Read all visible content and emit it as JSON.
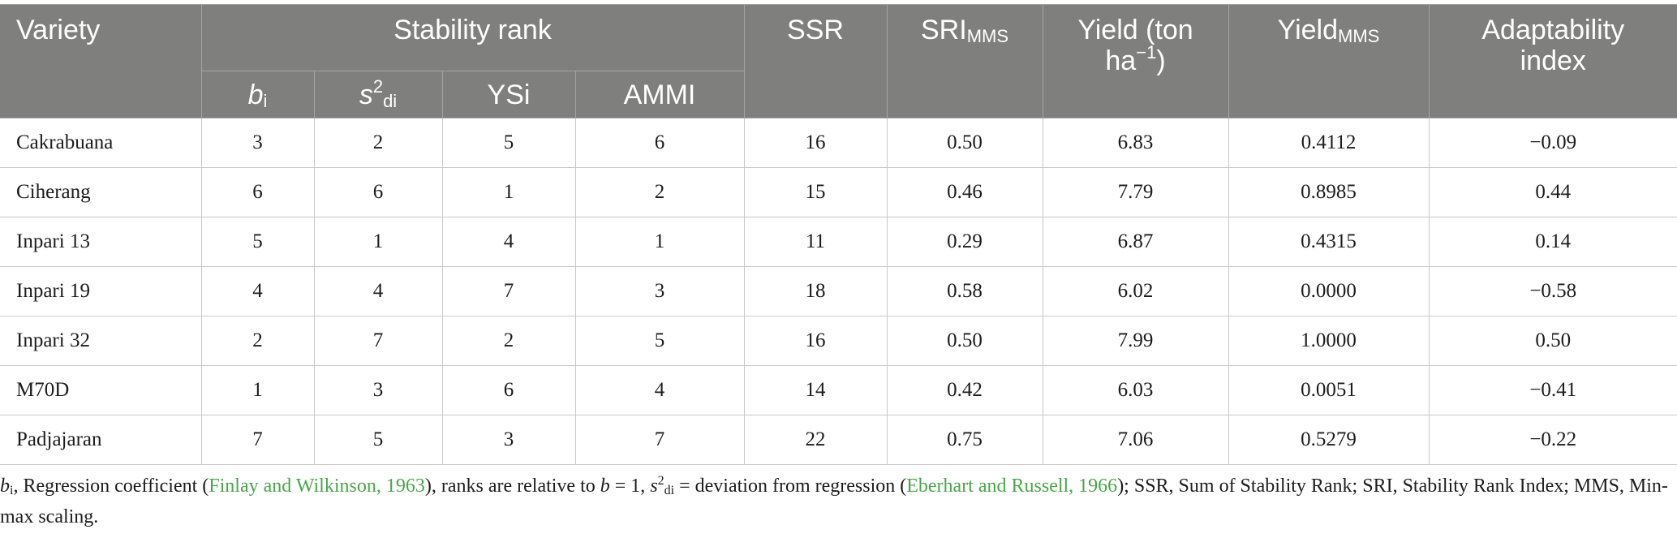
{
  "header": {
    "variety": "Variety",
    "stability_rank": "Stability rank",
    "bi": {
      "base": "b",
      "sub": "i"
    },
    "s2di": {
      "base": "s",
      "sup": "2",
      "sub": "di"
    },
    "ysi": "YSi",
    "ammi": "AMMI",
    "ssr": "SSR",
    "sri": {
      "base": "SRI",
      "sub": "MMS"
    },
    "yield": {
      "line1": "Yield (ton",
      "line2_base": "ha",
      "line2_sup": "−1",
      "line2_end": ")"
    },
    "yield_mms": {
      "base": "Yield",
      "sub": "MMS"
    },
    "adaptability": {
      "line1": "Adaptability",
      "line2": "index"
    }
  },
  "rows": [
    {
      "variety": "Cakrabuana",
      "bi": "3",
      "s2di": "2",
      "ysi": "5",
      "ammi": "6",
      "ssr": "16",
      "sri": "0.50",
      "yield": "6.83",
      "yield_mms": "0.4112",
      "adaptability": "−0.09"
    },
    {
      "variety": "Ciherang",
      "bi": "6",
      "s2di": "6",
      "ysi": "1",
      "ammi": "2",
      "ssr": "15",
      "sri": "0.46",
      "yield": "7.79",
      "yield_mms": "0.8985",
      "adaptability": "0.44"
    },
    {
      "variety": "Inpari 13",
      "bi": "5",
      "s2di": "1",
      "ysi": "4",
      "ammi": "1",
      "ssr": "11",
      "sri": "0.29",
      "yield": "6.87",
      "yield_mms": "0.4315",
      "adaptability": "0.14"
    },
    {
      "variety": "Inpari 19",
      "bi": "4",
      "s2di": "4",
      "ysi": "7",
      "ammi": "3",
      "ssr": "18",
      "sri": "0.58",
      "yield": "6.02",
      "yield_mms": "0.0000",
      "adaptability": "−0.58"
    },
    {
      "variety": "Inpari 32",
      "bi": "2",
      "s2di": "7",
      "ysi": "2",
      "ammi": "5",
      "ssr": "16",
      "sri": "0.50",
      "yield": "7.99",
      "yield_mms": "1.0000",
      "adaptability": "0.50"
    },
    {
      "variety": "M70D",
      "bi": "1",
      "s2di": "3",
      "ysi": "6",
      "ammi": "4",
      "ssr": "14",
      "sri": "0.42",
      "yield": "6.03",
      "yield_mms": "0.0051",
      "adaptability": "−0.41"
    },
    {
      "variety": "Padjajaran",
      "bi": "7",
      "s2di": "5",
      "ysi": "3",
      "ammi": "7",
      "ssr": "22",
      "sri": "0.75",
      "yield": "7.06",
      "yield_mms": "0.5279",
      "adaptability": "−0.22"
    }
  ],
  "footnote": {
    "b": "b",
    "b_sub": "i",
    "t1": ", Regression coefficient (",
    "cite1": "Finlay and Wilkinson, 1963",
    "t2": "), ranks are relative to ",
    "b2": "b",
    "t3": " = 1, ",
    "s": "s",
    "s_sup": "2",
    "s_sub": "di",
    "t4": " = deviation from regression (",
    "cite2": "Eberhart and Russell, 1966",
    "t5": "); SSR, Sum of Stability Rank; SRI, Stability Rank Index; MMS, Min-max scaling."
  }
}
